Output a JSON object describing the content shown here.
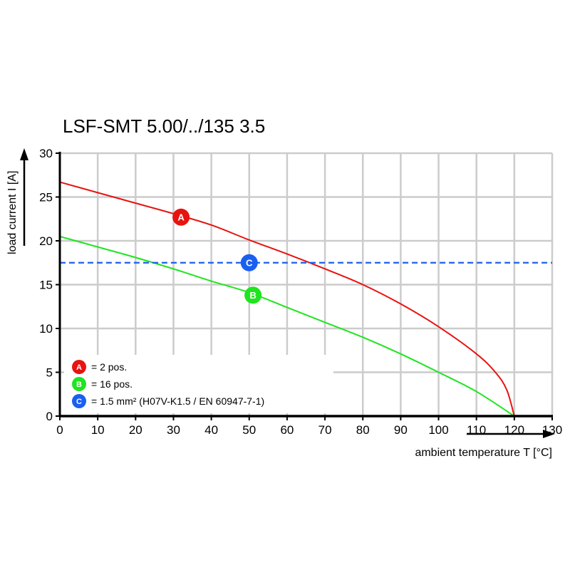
{
  "chart_data": {
    "type": "line",
    "title": "LSF-SMT 5.00/../135 3.5",
    "xlabel": "ambient temperature T [°C]",
    "ylabel": "load current I [A]",
    "xlim": [
      0,
      130
    ],
    "ylim": [
      0,
      30
    ],
    "x_ticks": [
      0,
      10,
      20,
      30,
      40,
      50,
      60,
      70,
      80,
      90,
      100,
      110,
      120,
      130
    ],
    "y_ticks": [
      0,
      5,
      10,
      15,
      20,
      25,
      30
    ],
    "grid": true,
    "legend_placement": "bottom-left",
    "series": [
      {
        "marker": "A",
        "name": "= 2 pos.",
        "color": "#e8130f",
        "x": [
          0,
          10,
          20,
          30,
          40,
          50,
          60,
          70,
          80,
          90,
          100,
          110,
          115,
          118,
          120
        ],
        "y": [
          26.7,
          25.5,
          24.3,
          23.1,
          21.8,
          20.1,
          18.5,
          16.8,
          15.0,
          12.8,
          10.2,
          7.1,
          5.0,
          3.0,
          0
        ],
        "marker_at": [
          32,
          22.7
        ]
      },
      {
        "marker": "B",
        "name": "= 16 pos.",
        "color": "#1ee51e",
        "x": [
          0,
          10,
          20,
          30,
          40,
          50,
          60,
          70,
          80,
          90,
          100,
          110,
          120
        ],
        "y": [
          20.5,
          19.3,
          18.1,
          16.8,
          15.4,
          14.1,
          12.4,
          10.7,
          9.0,
          7.1,
          5.0,
          2.8,
          0
        ],
        "marker_at": [
          51,
          13.8
        ]
      },
      {
        "marker": "C",
        "name": "= 1.5 mm² (H07V-K1.5 / EN 60947-7-1)",
        "color": "#1a5ff0",
        "dashed": true,
        "x": [
          0,
          130
        ],
        "y": [
          17.5,
          17.5
        ],
        "marker_at": [
          50,
          17.5
        ]
      }
    ]
  }
}
